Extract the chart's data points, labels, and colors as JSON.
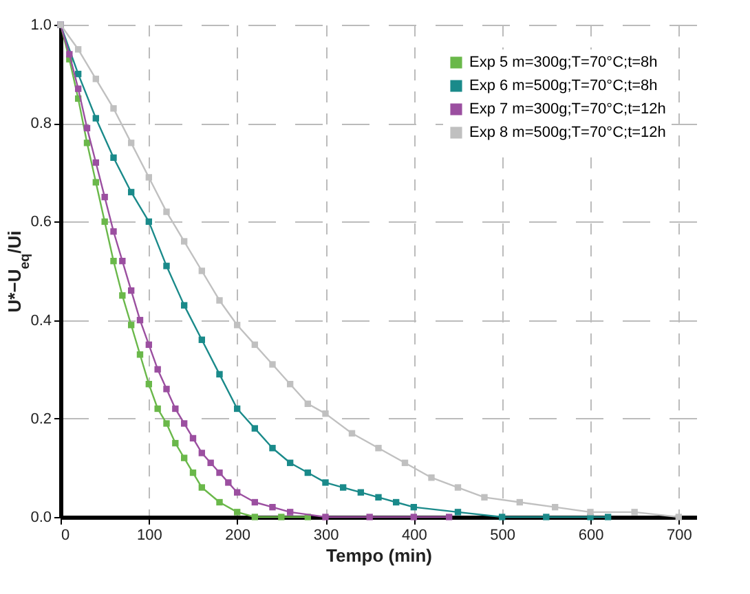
{
  "chart_data": {
    "type": "line",
    "xlabel": "Tempo (min)",
    "ylabel": "U*−U$_{eq}$/Ui",
    "xlim": [
      0,
      720
    ],
    "xticks": [
      0,
      100,
      200,
      300,
      400,
      500,
      600,
      700
    ],
    "ylim": [
      0,
      1
    ],
    "yticks": [
      {
        "value": 0,
        "label": "0.0"
      },
      {
        "value": 0.2,
        "label": "0.2"
      },
      {
        "value": 0.4,
        "label": "0.4"
      },
      {
        "value": 0.6,
        "label": "0.6"
      },
      {
        "value": 0.8,
        "label": "0.8"
      },
      {
        "value": 1,
        "label": "1.0"
      }
    ],
    "grid": true,
    "legend": "top right",
    "marker": "square",
    "line_style": "solid",
    "series": [
      {
        "name": "Exp 5 m=300g;T=70°C;t=8h",
        "color": "#6ab84a",
        "x": [
          0,
          10,
          20,
          30,
          40,
          50,
          60,
          70,
          80,
          90,
          100,
          110,
          120,
          130,
          140,
          150,
          160,
          180,
          200,
          220,
          250,
          280
        ],
        "values": [
          1.0,
          0.93,
          0.85,
          0.76,
          0.68,
          0.6,
          0.52,
          0.45,
          0.39,
          0.33,
          0.27,
          0.22,
          0.19,
          0.15,
          0.12,
          0.09,
          0.06,
          0.03,
          0.01,
          0.0,
          0.0,
          0.0
        ]
      },
      {
        "name": "Exp 6 m=500g;T=70°C;t=8h",
        "color": "#1a8a8a",
        "x": [
          0,
          20,
          40,
          60,
          80,
          100,
          120,
          140,
          160,
          180,
          200,
          220,
          240,
          260,
          280,
          300,
          320,
          340,
          360,
          380,
          400,
          450,
          500,
          550,
          600,
          620
        ],
        "values": [
          1.0,
          0.9,
          0.81,
          0.73,
          0.66,
          0.6,
          0.51,
          0.43,
          0.36,
          0.29,
          0.22,
          0.18,
          0.14,
          0.11,
          0.09,
          0.07,
          0.06,
          0.05,
          0.04,
          0.03,
          0.02,
          0.01,
          0.0,
          0.0,
          0.0,
          0.0
        ]
      },
      {
        "name": "Exp 7 m=300g;T=70°C;t=12h",
        "color": "#9b4fa0",
        "x": [
          0,
          10,
          20,
          30,
          40,
          50,
          60,
          70,
          80,
          90,
          100,
          110,
          120,
          130,
          140,
          150,
          160,
          170,
          180,
          190,
          200,
          220,
          240,
          260,
          300,
          350,
          400,
          440
        ],
        "values": [
          1.0,
          0.94,
          0.87,
          0.79,
          0.72,
          0.65,
          0.58,
          0.52,
          0.46,
          0.4,
          0.35,
          0.3,
          0.26,
          0.22,
          0.19,
          0.16,
          0.13,
          0.11,
          0.09,
          0.07,
          0.05,
          0.03,
          0.02,
          0.01,
          0.0,
          0.0,
          0.0,
          0.0
        ]
      },
      {
        "name": "Exp 8 m=500g;T=70°C;t=12h",
        "color": "#c0c0c0",
        "x": [
          0,
          20,
          40,
          60,
          80,
          100,
          120,
          140,
          160,
          180,
          200,
          220,
          240,
          260,
          280,
          300,
          330,
          360,
          390,
          420,
          450,
          480,
          520,
          560,
          600,
          650,
          700
        ],
        "values": [
          1.0,
          0.95,
          0.89,
          0.83,
          0.76,
          0.69,
          0.62,
          0.56,
          0.5,
          0.44,
          0.39,
          0.35,
          0.31,
          0.27,
          0.23,
          0.21,
          0.17,
          0.14,
          0.11,
          0.08,
          0.06,
          0.04,
          0.03,
          0.02,
          0.01,
          0.01,
          0.0
        ]
      }
    ]
  }
}
